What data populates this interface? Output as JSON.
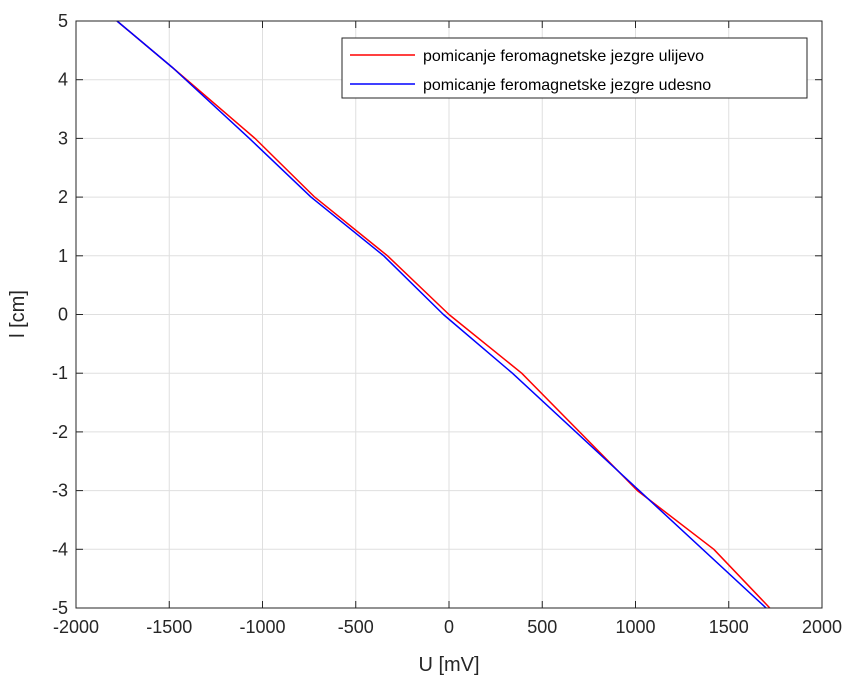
{
  "chart_data": {
    "type": "line",
    "title": "",
    "xlabel": "U [mV]",
    "ylabel": "l [cm]",
    "xlim": [
      -2000,
      2000
    ],
    "ylim": [
      -5,
      5
    ],
    "xticks": [
      -2000,
      -1500,
      -1000,
      -500,
      0,
      500,
      1000,
      1500,
      2000
    ],
    "yticks": [
      -5,
      -4,
      -3,
      -2,
      -1,
      0,
      1,
      2,
      3,
      4,
      5
    ],
    "xtick_labels": [
      "-2000",
      "-1500",
      "-1000",
      "-500",
      "0",
      "500",
      "1000",
      "1500",
      "2000"
    ],
    "ytick_labels": [
      "-5",
      "-4",
      "-3",
      "-2",
      "-1",
      "0",
      "1",
      "2",
      "3",
      "4",
      "5"
    ],
    "grid": true,
    "legend_position": "top-right",
    "series": [
      {
        "name": "pomicanje feromagnetske jezgre ulijevo",
        "color": "#ff0000",
        "x": [
          -1780,
          -1480,
          -1040,
          -720,
          -330,
          0,
          390,
          1010,
          1420,
          1720
        ],
        "y": [
          5,
          4.2,
          3,
          2,
          1,
          0,
          -1,
          -3,
          -4,
          -5
        ]
      },
      {
        "name": "pomicanje feromagnetske jezgre udesno",
        "color": "#0000ff",
        "x": [
          -1780,
          -1480,
          -1070,
          -740,
          -350,
          -30,
          340,
          1020,
          1700
        ],
        "y": [
          5,
          4.2,
          3,
          2,
          1,
          0,
          -1,
          -3,
          -5
        ]
      }
    ]
  }
}
